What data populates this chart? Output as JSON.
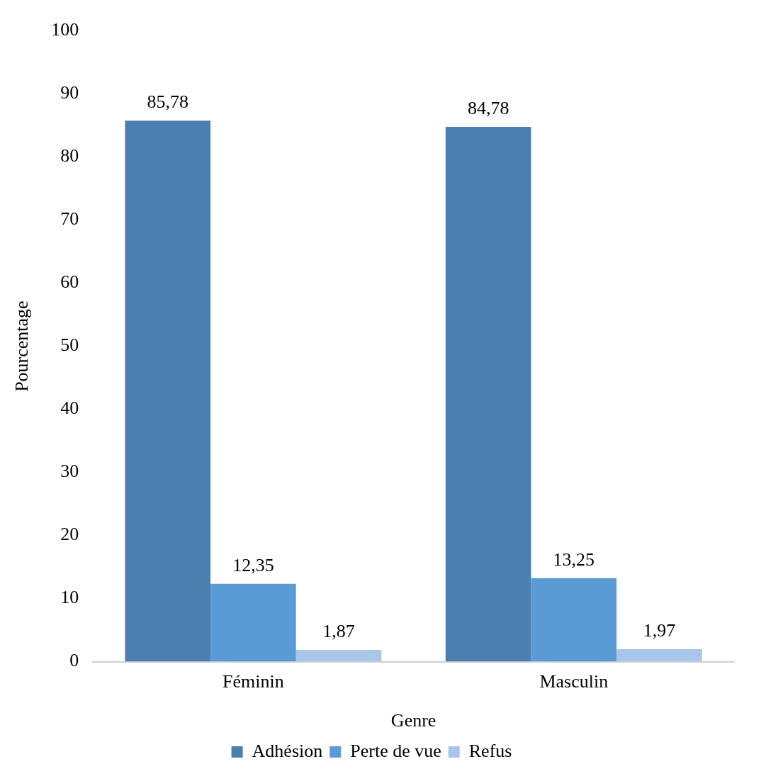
{
  "chart_data": {
    "type": "bar",
    "xlabel": "Genre",
    "ylabel": "Pourcentage",
    "categories": [
      "Féminin",
      "Masculin"
    ],
    "series": [
      {
        "name": "Adhésion",
        "color": "#4a7fb0",
        "values": [
          85.78,
          84.78
        ],
        "value_labels": [
          "85,78",
          "84,78"
        ]
      },
      {
        "name": "Perte de vue",
        "color": "#5b9bd5",
        "values": [
          12.35,
          13.25
        ],
        "value_labels": [
          "12,35",
          "13,25"
        ]
      },
      {
        "name": "Refus",
        "color": "#a9c5e8",
        "values": [
          1.87,
          1.97
        ],
        "value_labels": [
          "1,87",
          "1,97"
        ]
      }
    ],
    "ylim": [
      0,
      100
    ],
    "yticks": [
      0,
      10,
      20,
      30,
      40,
      50,
      60,
      70,
      80,
      90,
      100
    ],
    "grid": false,
    "legend": "bottom"
  }
}
